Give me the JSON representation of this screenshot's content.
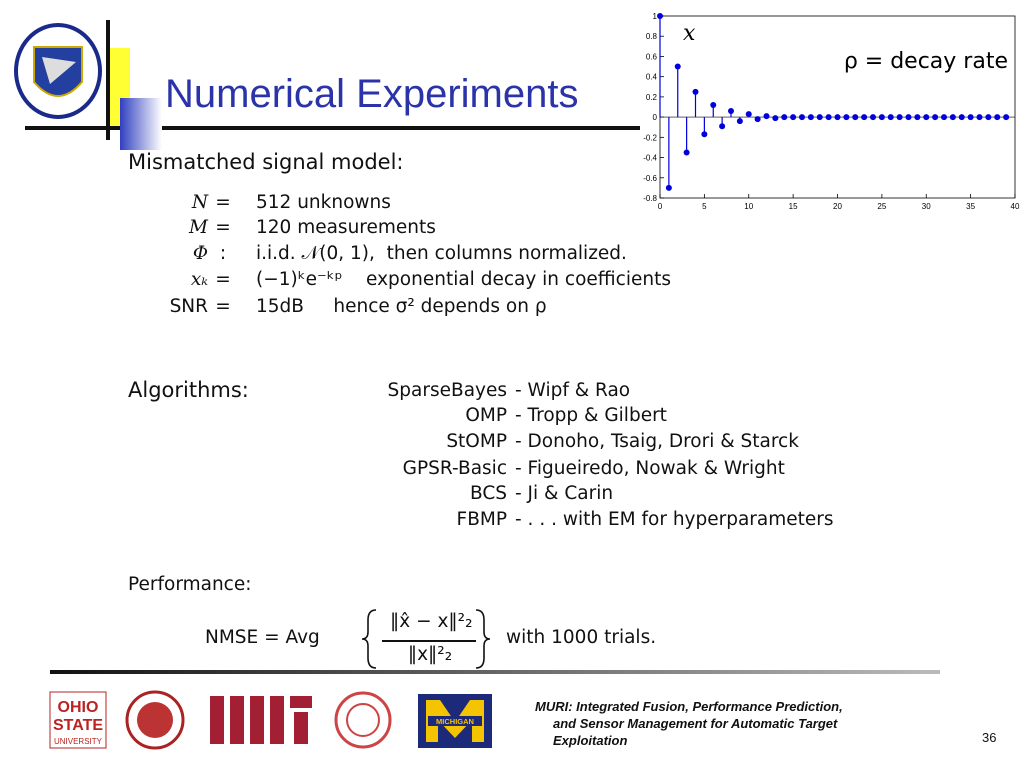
{
  "header": {
    "title": "Numerical Experiments"
  },
  "model": {
    "heading": "Mismatched signal model:",
    "rows": [
      [
        "N",
        "=",
        "512 unknowns"
      ],
      [
        "M",
        "=",
        "120 measurements"
      ],
      [
        "Φ",
        ":",
        "i.i.d. 𝒩(0, 1),  then columns normalized."
      ],
      [
        "xₖ",
        "=",
        "(−1)ᵏe⁻ᵏᵖ    exponential decay in coefficients"
      ],
      [
        "SNR",
        "=",
        "15dB     hence σ² depends on ρ"
      ]
    ]
  },
  "algorithms": {
    "heading": "Algorithms:",
    "rows": [
      [
        "SparseBayes",
        "- Wipf & Rao"
      ],
      [
        "OMP",
        "- Tropp & Gilbert"
      ],
      [
        "StOMP",
        "- Donoho, Tsaig, Drori & Starck"
      ],
      [
        "GPSR-Basic",
        "- Figueiredo, Nowak & Wright"
      ],
      [
        "BCS",
        "- Ji & Carin"
      ],
      [
        "FBMP",
        "- . . . with EM for hyperparameters"
      ]
    ]
  },
  "performance": {
    "heading": "Performance:",
    "lhs": "NMSE = Avg",
    "numerator": "‖x̂ − x‖²₂",
    "denominator": "‖x‖²₂",
    "rhs": "with 1000 trials."
  },
  "plot": {
    "type": "stem",
    "label": "x",
    "annotation": "ρ =  decay rate",
    "color": "#0000dd",
    "x": [
      0,
      1,
      2,
      3,
      4,
      5,
      6,
      7,
      8,
      9,
      10,
      11,
      12,
      13,
      14,
      15,
      16,
      17,
      18,
      19,
      20,
      21,
      22,
      23,
      24,
      25,
      26,
      27,
      28,
      29,
      30,
      31,
      32,
      33,
      34,
      35,
      36,
      37,
      38,
      39
    ],
    "values": [
      1,
      -0.7,
      0.5,
      -0.35,
      0.25,
      -0.17,
      0.12,
      -0.09,
      0.06,
      -0.04,
      0.03,
      -0.02,
      0.01,
      -0.01,
      0,
      0,
      0,
      0,
      0,
      0,
      0,
      0,
      0,
      0,
      0,
      0,
      0,
      0,
      0,
      0,
      0,
      0,
      0,
      0,
      0,
      0,
      0,
      0,
      0,
      0
    ],
    "xlim": [
      0,
      40
    ],
    "xticks": [
      0,
      5,
      10,
      15,
      20,
      25,
      30,
      35,
      40
    ],
    "ylim": [
      -0.8,
      1
    ],
    "yticks": [
      -0.8,
      -0.6,
      -0.4,
      -0.2,
      0,
      0.2,
      0.4,
      0.6,
      0.8,
      1
    ]
  },
  "footer": {
    "logos": [
      "OHIO",
      "STATE",
      "UNIVERSITY",
      "MICHIGAN"
    ],
    "lines": [
      "MURI: Integrated Fusion, Performance Prediction,",
      "and Sensor Management for Automatic Target",
      "Exploitation"
    ],
    "page": "36"
  }
}
